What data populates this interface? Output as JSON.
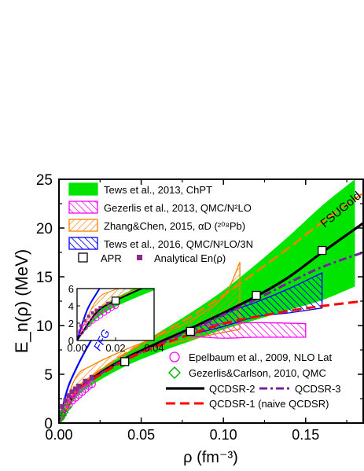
{
  "chart_data": {
    "type": "line",
    "ylabel": "E_n(ρ) (MeV)",
    "xlabel": "ρ (fm⁻³)",
    "xlim": [
      0,
      0.185
    ],
    "ylim": [
      0,
      25
    ],
    "x_ticks": [
      "0.00",
      "0.05",
      "0.10",
      "0.15"
    ],
    "y_ticks": [
      "0",
      "5",
      "10",
      "15",
      "20",
      "25"
    ],
    "x_tick_values": [
      0,
      0.05,
      0.1,
      0.15
    ],
    "y_tick_values": [
      0,
      5,
      10,
      15,
      20,
      25
    ],
    "grid": false,
    "legend_top": [
      {
        "label": "Tews et al., 2013, ChPT",
        "style": "fill",
        "color": "#00e400"
      },
      {
        "label": "Gezerlis et al., 2013, QMC/N²LO",
        "style": "hatch",
        "color": "#ff00ff"
      },
      {
        "label": "Zhang&Chen, 2015, αD (²⁰⁸Pb)",
        "style": "hatch",
        "color": "#ff8000"
      },
      {
        "label": "Tews et al., 2016, QMC/N²LO/3N",
        "style": "hatch",
        "color": "#0000ff"
      }
    ],
    "legend_apr": "APR",
    "legend_analytical": "Analytical En(ρ)",
    "legend_bottom": [
      {
        "label": "Epelbaum et al., 2009, NLO Lat",
        "marker": "circle",
        "color": "#ff00ff"
      },
      {
        "label": "Gezerlis&Carlson, 2010, QMC",
        "marker": "diamond",
        "color": "#00aa00"
      },
      {
        "label": "QCDSR-2",
        "line": "solid",
        "color": "#000000"
      },
      {
        "label": "QCDSR-3",
        "line": "dashdot",
        "color": "#7a1fa2"
      },
      {
        "label": "QCDSR-1 (naive QCDSR)",
        "line": "dashed",
        "color": "#ff0000"
      }
    ],
    "annotations": {
      "ffg": "FFG",
      "fsugold": "FSUGold"
    },
    "colors": {
      "chpt": "#00e400",
      "gezerlis": "#ff00ff",
      "zhang": "#ff8000",
      "tews2016": "#0000ff",
      "qcdsr1": "#ff0000",
      "qcdsr2": "#000000",
      "qcdsr3": "#7a1fa2",
      "fsugold": "#ff8000",
      "ffg": "#0000ff",
      "analytical": "#8b2a8b"
    },
    "series": [
      {
        "name": "QCDSR-2",
        "x": [
          0.0,
          0.01,
          0.02,
          0.04,
          0.06,
          0.08,
          0.1,
          0.12,
          0.14,
          0.16,
          0.185
        ],
        "y": [
          0.0,
          3.2,
          4.6,
          6.6,
          8.2,
          9.7,
          11.3,
          13.0,
          15.0,
          17.5,
          20.5
        ]
      },
      {
        "name": "QCDSR-3",
        "x": [
          0.0,
          0.01,
          0.02,
          0.04,
          0.06,
          0.08,
          0.1,
          0.12,
          0.14,
          0.16,
          0.185
        ],
        "y": [
          0.0,
          3.1,
          4.5,
          6.5,
          8.0,
          9.5,
          11.1,
          12.7,
          14.4,
          16.0,
          17.5
        ]
      },
      {
        "name": "QCDSR-1 (naive QCDSR)",
        "x": [
          0.0,
          0.01,
          0.02,
          0.04,
          0.06,
          0.08,
          0.1,
          0.12,
          0.14,
          0.16,
          0.185
        ],
        "y": [
          0.0,
          3.0,
          4.4,
          6.4,
          7.9,
          9.1,
          10.2,
          10.9,
          11.5,
          12.0,
          12.5
        ]
      },
      {
        "name": "FSUGold",
        "x": [
          0.0,
          0.01,
          0.02,
          0.04,
          0.06,
          0.08,
          0.1,
          0.12,
          0.14,
          0.16,
          0.185
        ],
        "y": [
          0.0,
          3.3,
          4.8,
          7.1,
          9.0,
          10.9,
          13.1,
          15.5,
          18.0,
          20.6,
          23.6
        ]
      },
      {
        "name": "FFG",
        "x": [
          0.0,
          0.005,
          0.01,
          0.015,
          0.02,
          0.025,
          0.03
        ],
        "y": [
          0.0,
          3.4,
          5.4,
          7.1,
          8.6,
          10.0,
          11.3
        ]
      }
    ],
    "bands": [
      {
        "name": "Tews et al., 2013, ChPT",
        "x": [
          0.0,
          0.01,
          0.02,
          0.04,
          0.06,
          0.08,
          0.1,
          0.12,
          0.14,
          0.16,
          0.18
        ],
        "lower": [
          0.0,
          2.5,
          3.9,
          5.8,
          7.2,
          8.4,
          9.6,
          10.6,
          11.6,
          12.6,
          14.0
        ],
        "upper": [
          0.0,
          3.4,
          4.9,
          7.1,
          9.2,
          11.3,
          13.6,
          16.3,
          19.2,
          22.3,
          25.0
        ]
      },
      {
        "name": "Zhang&Chen, 2015, αD (²⁰⁸Pb)",
        "x": [
          0.0,
          0.01,
          0.02,
          0.04,
          0.06,
          0.08,
          0.1,
          0.11
        ],
        "lower": [
          0.0,
          3.3,
          4.8,
          6.6,
          7.8,
          8.6,
          9.3,
          9.6
        ],
        "upper": [
          0.0,
          4.6,
          5.9,
          7.5,
          8.9,
          10.5,
          13.0,
          16.5
        ]
      },
      {
        "name": "Gezerlis et al., 2013, QMC/N²LO",
        "x": [
          0.08,
          0.1,
          0.12,
          0.15
        ],
        "lower": [
          8.9,
          8.7,
          8.8,
          8.8
        ],
        "upper": [
          9.9,
          10.2,
          10.3,
          10.2
        ]
      },
      {
        "name": "Tews et al., 2016, QMC/N²LO/3N",
        "x": [
          0.08,
          0.1,
          0.12,
          0.14,
          0.16
        ],
        "lower": [
          9.1,
          9.9,
          10.9,
          11.3,
          11.8
        ],
        "upper": [
          9.7,
          11.2,
          12.4,
          13.8,
          15.4
        ]
      }
    ],
    "apr_points": {
      "x": [
        0.04,
        0.08,
        0.12,
        0.16
      ],
      "y": [
        6.3,
        9.4,
        13.1,
        17.7
      ]
    },
    "analytical_points": {
      "x": [
        0.002,
        0.004,
        0.006,
        0.008,
        0.01,
        0.012,
        0.016,
        0.02
      ],
      "y": [
        1.7,
        2.3,
        2.8,
        3.2,
        3.5,
        3.8,
        4.3,
        4.7
      ]
    },
    "epelbaum_points": {
      "x": [
        0.002,
        0.004,
        0.006,
        0.008,
        0.01,
        0.012,
        0.014,
        0.016,
        0.018,
        0.02
      ],
      "y": [
        1.0,
        1.5,
        1.9,
        2.3,
        2.6,
        2.9,
        3.2,
        3.5,
        3.8,
        4.0
      ]
    },
    "gezerlis_carlson_points": {
      "x": [
        0.001,
        0.002,
        0.003,
        0.005
      ],
      "y": [
        0.5,
        0.8,
        1.1,
        1.6
      ]
    },
    "inset": {
      "xlim": [
        0,
        0.04
      ],
      "ylim": [
        0,
        6
      ],
      "x_ticks": [
        "0.00",
        "0.02",
        "0.04"
      ],
      "y_ticks": [
        "0",
        "2",
        "4",
        "6"
      ],
      "x_tick_values": [
        0,
        0.02,
        0.04
      ],
      "y_tick_values": [
        0,
        2,
        4,
        6
      ]
    }
  }
}
